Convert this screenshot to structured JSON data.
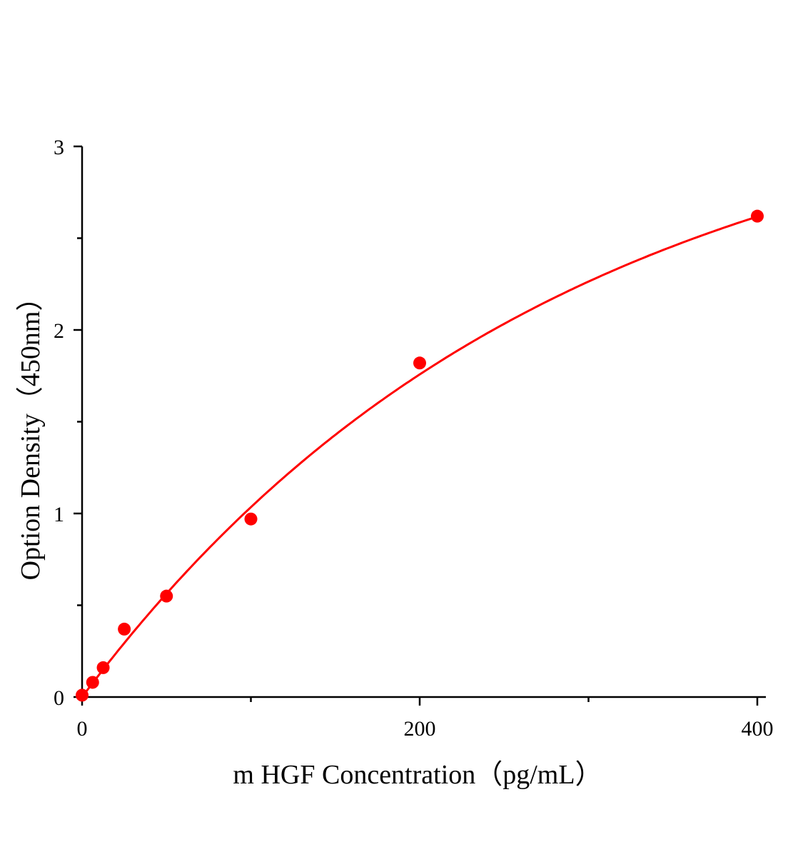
{
  "chart_data": {
    "type": "scatter",
    "title": "",
    "xlabel": "m HGF Concentration（pg/mL）",
    "ylabel": "Option Density（450nm）",
    "xlim": [
      0,
      400
    ],
    "ylim": [
      0,
      3
    ],
    "x_ticks": [
      0,
      200,
      400
    ],
    "x_minor_ticks": [
      100,
      300
    ],
    "y_ticks": [
      0,
      1,
      2,
      3
    ],
    "y_minor_ticks": [
      0.5,
      1.5,
      2.5
    ],
    "grid": false,
    "legend": "none",
    "series": [
      {
        "x": [
          0,
          6.25,
          12.5,
          25,
          50,
          100,
          200,
          400
        ],
        "y": [
          0.01,
          0.08,
          0.16,
          0.37,
          0.55,
          0.97,
          1.82,
          2.62
        ],
        "fit_line": true
      }
    ],
    "colors": {
      "series": "#ff0000",
      "axis": "#000000"
    }
  }
}
